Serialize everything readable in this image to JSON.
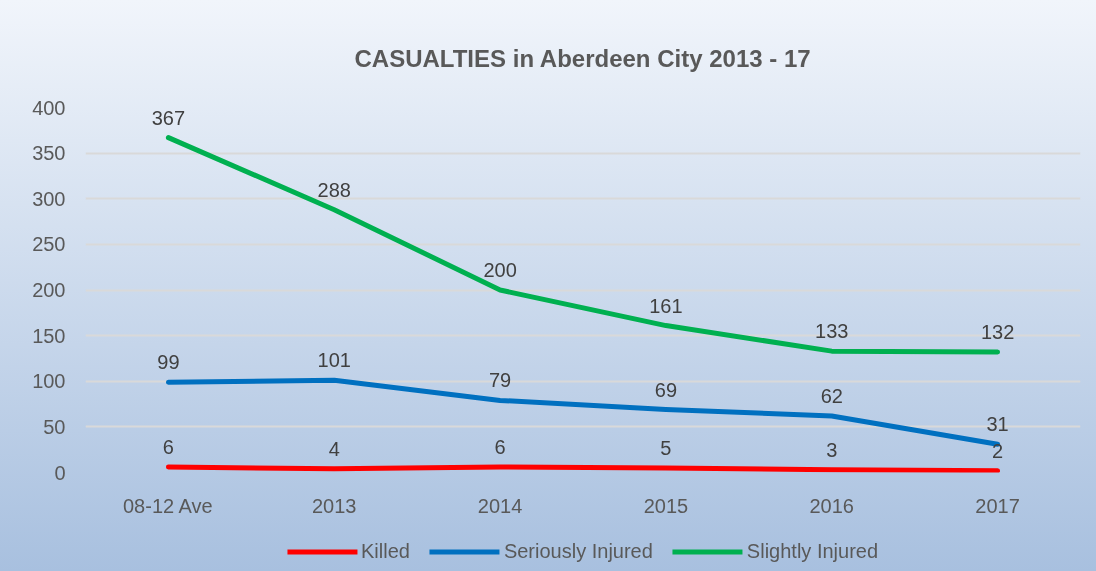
{
  "chart_data": {
    "type": "line",
    "title": "CASUALTIES in Aberdeen City 2013 - 17",
    "categories": [
      "08-12 Ave",
      "2013",
      "2014",
      "2015",
      "2016",
      "2017"
    ],
    "series": [
      {
        "name": "Killed",
        "color": "#ff0000",
        "values": [
          6,
          4,
          6,
          5,
          3,
          2
        ]
      },
      {
        "name": "Seriously Injured",
        "color": "#0070c0",
        "values": [
          99,
          101,
          79,
          69,
          62,
          31
        ]
      },
      {
        "name": "Slightly Injured",
        "color": "#00b050",
        "values": [
          367,
          288,
          200,
          161,
          133,
          132
        ]
      }
    ],
    "ylim": [
      0,
      400
    ],
    "yticks": [
      0,
      50,
      100,
      150,
      200,
      250,
      300,
      350,
      400
    ],
    "grid": "y",
    "legend": "bottom",
    "data_labels": true,
    "marker": "none",
    "line_style": "solid"
  }
}
